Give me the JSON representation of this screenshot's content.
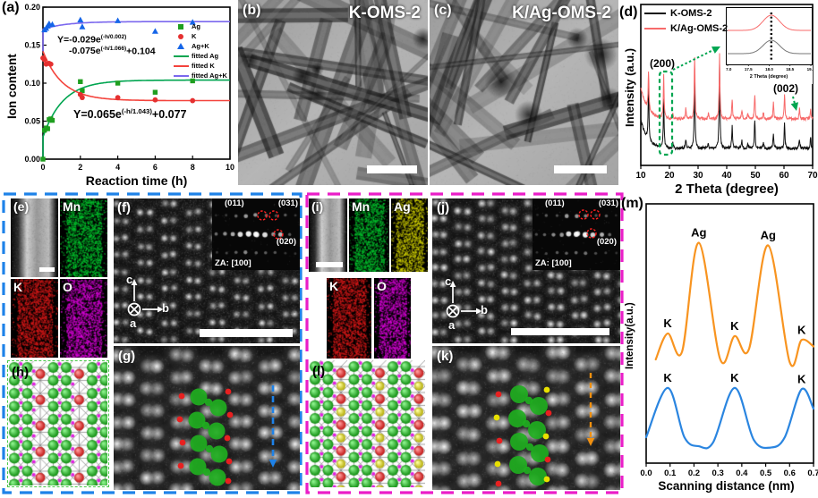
{
  "colors": {
    "box_blue": "#1e82e8",
    "box_magenta": "#ea1ec8",
    "annotation_green": "#00a550",
    "mn_green": "#00c030",
    "k_red": "#d42020",
    "o_magenta": "#d400d4",
    "ag_yellow": "#cfcf00",
    "profile_orange": "#f89420",
    "profile_blue": "#2a85e0",
    "xrd_black": "#111111",
    "xrd_red": "#f76a6a",
    "atom_mn": "#1fae1f",
    "atom_k": "#e53030",
    "atom_ag": "#e6d800",
    "atom_o": "#e020e0"
  },
  "panels": {
    "a": {
      "label": "(a)",
      "xlabel": "Reaction time (h)",
      "ylabel": "Ion content",
      "legend": [
        {
          "label": "Ag",
          "marker": "square",
          "color": "#1f9e1f"
        },
        {
          "label": "K",
          "marker": "circle",
          "color": "#e53030"
        },
        {
          "label": "Ag+K",
          "marker": "triangle",
          "color": "#1565e8"
        },
        {
          "label": "fitted Ag",
          "marker": "line",
          "color": "#00a550"
        },
        {
          "label": "fitted K",
          "marker": "line",
          "color": "#f4433c"
        },
        {
          "label": "fitted Ag+K",
          "marker": "line",
          "color": "#7b68ee"
        }
      ],
      "eq_agk": {
        "l1pre": "Y=-0.029e",
        "l1sup": "(-h/0.002)",
        "l2pre": "-0.075e",
        "l2sup": "(-h/1.066)",
        "l2post": "+0.104"
      },
      "eq_k": {
        "pre": "Y=0.065e",
        "sup": "(-h/1.043)",
        "post": "+0.077"
      }
    },
    "b": {
      "label": "(b)",
      "title": "K-OMS-2"
    },
    "c": {
      "label": "(c)",
      "title": "K/Ag-OMS-2"
    },
    "d": {
      "label": "(d)",
      "xlabel": "2 Theta (degree)",
      "ylabel": "Intensity (a.u.)",
      "ann_200": "(200)",
      "ann_002": "(002)"
    },
    "e": {
      "label": "(e)",
      "mn": "Mn",
      "k": "K",
      "o": "O"
    },
    "f": {
      "label": "(f)",
      "fft": {
        "l011": "(011)",
        "l031": "(031)",
        "l020": "(020)",
        "za": "ZA: [100]"
      },
      "axes": {
        "c": "c",
        "b": "b",
        "a": "a"
      }
    },
    "g": {
      "label": "(g)"
    },
    "h": {
      "label": "(h)"
    },
    "i": {
      "label": "(i)",
      "mn": "Mn",
      "ag": "Ag",
      "k": "K",
      "o": "O"
    },
    "j": {
      "label": "(j)",
      "fft": {
        "l011": "(011)",
        "l031": "(031)",
        "l020": "(020)",
        "za": "ZA: [100]"
      },
      "axes": {
        "c": "c",
        "b": "b",
        "a": "a"
      }
    },
    "k": {
      "label": "(k)"
    },
    "l": {
      "label": "(l)"
    },
    "m": {
      "label": "(m)",
      "xlabel": "Scanning distance (nm)",
      "ylabel": "Intensity(a.u.)"
    }
  },
  "chart_data": [
    {
      "id": "ion-content-vs-time",
      "type": "scatter",
      "title": "",
      "xlabel": "Reaction time (h)",
      "ylabel": "Ion content",
      "xlim": [
        0,
        10
      ],
      "ylim": [
        0,
        0.2
      ],
      "xticks": [
        0,
        2,
        4,
        6,
        8,
        10
      ],
      "yticks": [
        0,
        0.05,
        0.1,
        0.15,
        0.2
      ],
      "equations": [
        "Y=-0.029e^(-h/0.002)-0.075e^(-h/1.066)+0.104",
        "Y=0.065e^(-h/1.043)+0.077"
      ],
      "series": [
        {
          "name": "Ag",
          "marker": "square",
          "color": "#1f9e1f",
          "points": [
            [
              0,
              0.0
            ],
            [
              0.08,
              0.038
            ],
            [
              0.17,
              0.041
            ],
            [
              0.25,
              0.04
            ],
            [
              0.33,
              0.052
            ],
            [
              0.42,
              0.053
            ],
            [
              0.5,
              0.051
            ],
            [
              2,
              0.102
            ],
            [
              2.1,
              0.09
            ],
            [
              4,
              0.1
            ],
            [
              6,
              0.088
            ],
            [
              8,
              0.103
            ]
          ]
        },
        {
          "name": "K",
          "marker": "circle",
          "color": "#e53030",
          "points": [
            [
              0,
              0.133
            ],
            [
              0.08,
              0.131
            ],
            [
              0.17,
              0.125
            ],
            [
              0.33,
              0.126
            ],
            [
              0.42,
              0.125
            ],
            [
              2,
              0.085
            ],
            [
              2.1,
              0.081
            ],
            [
              4,
              0.081
            ],
            [
              6,
              0.078
            ],
            [
              8,
              0.077
            ]
          ]
        },
        {
          "name": "Ag+K",
          "marker": "triangle",
          "color": "#1565e8",
          "points": [
            [
              0.08,
              0.17
            ],
            [
              0.17,
              0.172
            ],
            [
              0.25,
              0.175
            ],
            [
              0.33,
              0.178
            ],
            [
              0.5,
              0.177
            ],
            [
              2,
              0.183
            ],
            [
              2.1,
              0.174
            ],
            [
              4,
              0.182
            ],
            [
              6,
              0.168
            ],
            [
              8,
              0.18
            ]
          ]
        }
      ],
      "fits": {
        "ag": {
          "a1": -0.029,
          "t1": 0.002,
          "a2": -0.075,
          "t2": 1.066,
          "c": 0.104,
          "color": "#00a550"
        },
        "k": {
          "a": 0.065,
          "t": 1.043,
          "c": 0.077,
          "color": "#f4433c"
        },
        "agk": {
          "rule": "sum of fitted Ag and fitted K",
          "color": "#7b68ee"
        }
      }
    },
    {
      "id": "xrd",
      "type": "line",
      "xlabel": "2 Theta (degree)",
      "ylabel": "Intensity (a.u.)",
      "xlim": [
        10,
        70
      ],
      "xticks": [
        10,
        20,
        30,
        40,
        50,
        60,
        70
      ],
      "annotations": [
        "(200)",
        "(002)"
      ],
      "series": [
        {
          "name": "K-OMS-2",
          "color": "#111111",
          "base": 166,
          "drift": 32,
          "peaks_2theta_height": [
            [
              12.7,
              60
            ],
            [
              18.0,
              55
            ],
            [
              21.2,
              6
            ],
            [
              25.7,
              9
            ],
            [
              28.8,
              88
            ],
            [
              33.6,
              6
            ],
            [
              37.5,
              95
            ],
            [
              41.9,
              25
            ],
            [
              45.3,
              8
            ],
            [
              47.4,
              6
            ],
            [
              49.8,
              32
            ],
            [
              52.8,
              6
            ],
            [
              56.3,
              16
            ],
            [
              60.2,
              28
            ],
            [
              65.4,
              10
            ],
            [
              69.3,
              12
            ]
          ]
        },
        {
          "name": "K/Ag-OMS-2",
          "color": "#f76a6a",
          "base": 133,
          "drift": 35,
          "peaks_2theta_height": [
            [
              12.7,
              42
            ],
            [
              18.0,
              48
            ],
            [
              21.2,
              6
            ],
            [
              25.7,
              11
            ],
            [
              28.8,
              70
            ],
            [
              33.6,
              6
            ],
            [
              37.5,
              72
            ],
            [
              41.9,
              22
            ],
            [
              45.3,
              9
            ],
            [
              47.4,
              6
            ],
            [
              49.8,
              28
            ],
            [
              52.8,
              7
            ],
            [
              56.3,
              18
            ],
            [
              60.2,
              26
            ],
            [
              65.4,
              12
            ],
            [
              69.3,
              10
            ]
          ]
        }
      ]
    },
    {
      "id": "xrd-inset",
      "type": "line",
      "xlabel": "2 Theta (degree)",
      "xlim": [
        17,
        19
      ],
      "xticks": [
        17.0,
        17.5,
        18.0,
        18.5,
        19.0
      ],
      "peak_center": 18.05,
      "peak_width": 0.17,
      "dotted_line_x": 18.05,
      "series": [
        {
          "name": "K/Ag-OMS-2",
          "color": "#f76a6a",
          "base": 26,
          "height": 17
        },
        {
          "name": "K-OMS-2",
          "color": "#777777",
          "base": 52,
          "height": 15
        }
      ]
    },
    {
      "id": "stem-line-profile",
      "type": "line",
      "xlabel": "Scanning distance (nm)",
      "ylabel": "Intensity(a.u.)",
      "xlim": [
        0,
        0.7
      ],
      "xticks": [
        0.0,
        0.1,
        0.2,
        0.3,
        0.4,
        0.5,
        0.6,
        0.7
      ],
      "series": [
        {
          "name": "K/Ag-OMS-2",
          "color": "#f89420",
          "points": [
            [
              0.04,
              0.4
            ],
            [
              0.09,
              0.5
            ],
            [
              0.15,
              0.43
            ],
            [
              0.22,
              0.85
            ],
            [
              0.31,
              0.4
            ],
            [
              0.37,
              0.49
            ],
            [
              0.43,
              0.44
            ],
            [
              0.51,
              0.84
            ],
            [
              0.6,
              0.39
            ],
            [
              0.65,
              0.475
            ],
            [
              0.7,
              0.45
            ]
          ],
          "peak_labels": [
            {
              "x": 0.09,
              "y": 0.5,
              "text": "K"
            },
            {
              "x": 0.22,
              "y": 0.85,
              "text": "Ag"
            },
            {
              "x": 0.37,
              "y": 0.49,
              "text": "K"
            },
            {
              "x": 0.51,
              "y": 0.84,
              "text": "Ag"
            },
            {
              "x": 0.65,
              "y": 0.475,
              "text": "K"
            }
          ]
        },
        {
          "name": "K-OMS-2",
          "color": "#2a85e0",
          "points": [
            [
              0.0,
              0.1
            ],
            [
              0.09,
              0.29
            ],
            [
              0.16,
              0.1
            ],
            [
              0.22,
              0.065
            ],
            [
              0.28,
              0.08
            ],
            [
              0.37,
              0.29
            ],
            [
              0.45,
              0.09
            ],
            [
              0.52,
              0.06
            ],
            [
              0.58,
              0.1
            ],
            [
              0.65,
              0.285
            ],
            [
              0.7,
              0.21
            ]
          ],
          "peak_labels": [
            {
              "x": 0.09,
              "y": 0.29,
              "text": "K"
            },
            {
              "x": 0.37,
              "y": 0.29,
              "text": "K"
            },
            {
              "x": 0.65,
              "y": 0.285,
              "text": "K"
            }
          ]
        }
      ]
    }
  ]
}
